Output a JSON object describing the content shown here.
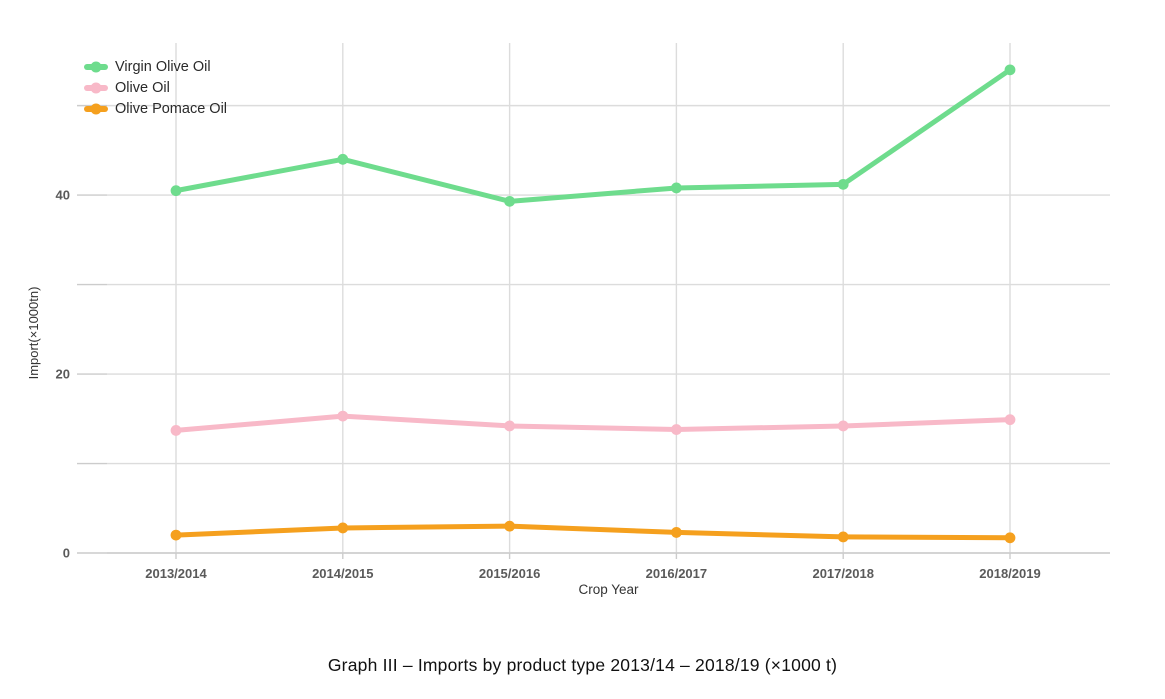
{
  "chart_data": {
    "type": "line",
    "title": "",
    "xlabel": "Crop Year",
    "ylabel": "Import(×1000tn)",
    "categories": [
      "2013/2014",
      "2014/2015",
      "2015/2016",
      "2016/2017",
      "2017/2018",
      "2018/2019"
    ],
    "series": [
      {
        "name": "Virgin Olive Oil",
        "color": "#6edc8d",
        "values": [
          40.5,
          44.0,
          39.3,
          40.8,
          41.2,
          54.0
        ]
      },
      {
        "name": "Olive Oil",
        "color": "#f8b9c8",
        "values": [
          13.7,
          15.3,
          14.2,
          13.8,
          14.2,
          14.9
        ]
      },
      {
        "name": "Olive Pomace Oil",
        "color": "#f5a01e",
        "values": [
          2.0,
          2.8,
          3.0,
          2.3,
          1.8,
          1.7
        ]
      }
    ],
    "ylim": [
      0,
      57
    ],
    "ygrid_values": [
      0,
      10,
      20,
      30,
      40,
      50
    ],
    "ytick_labeled_values": [
      0,
      20,
      40
    ],
    "grid": true,
    "legend_position": "top-left-inside"
  },
  "caption": "Graph III – Imports by product type 2013/14 – 2018/19 (×1000 t)",
  "colors": {
    "background": "#ffffff",
    "gridline": "#dcdcdc",
    "axis_line": "#cccccc",
    "tick_mark": "#cccccc",
    "tick_label": "#5a5a5a",
    "axis_title": "#333333"
  }
}
